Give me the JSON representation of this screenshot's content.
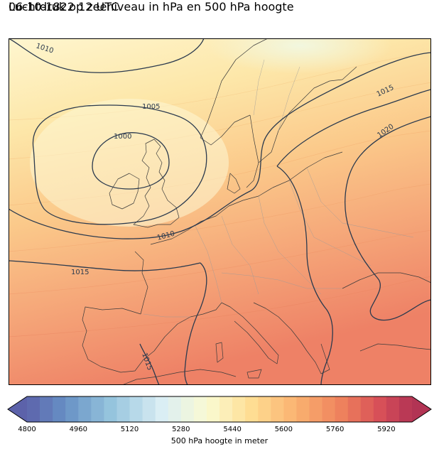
{
  "title": {
    "line1": "06-10-1822 12 UTC",
    "line2": "Luchtdruk op zeeniveau in hPa en 500 hPa hoogte"
  },
  "isobars": {
    "color": "#2b3a4e",
    "labels": [
      "1010",
      "1005",
      "1000",
      "1015",
      "1020",
      "1010",
      "1015",
      "1015"
    ]
  },
  "colorbar": {
    "label": "500 hPa hoogte in meter",
    "min": 4800,
    "max": 6000,
    "step": 40,
    "ticks": [
      "4800",
      "4960",
      "5120",
      "5280",
      "5440",
      "5600",
      "5760",
      "5920"
    ],
    "colormap": "RdYlBu_r",
    "extend": "both"
  },
  "colors": {
    "coastline": "#3b3b3b",
    "borders": "#9a9a9a",
    "frame": "#000000"
  }
}
